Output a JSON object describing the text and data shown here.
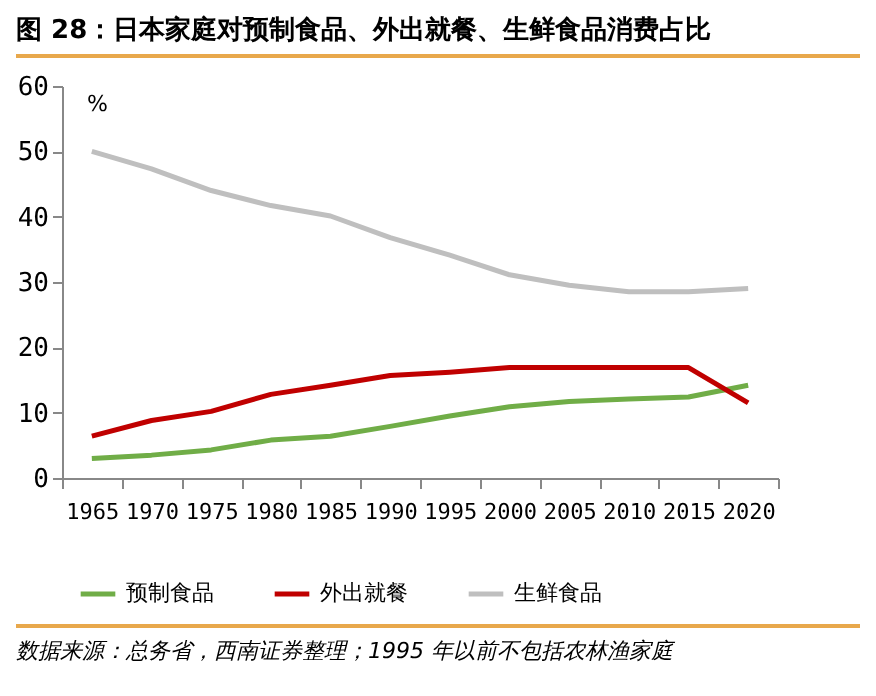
{
  "chart_data": {
    "type": "line",
    "title": "图 28：日本家庭对预制食品、外出就餐、生鲜食品消费占比",
    "ylabel": "%",
    "categories": [
      "1965",
      "1970",
      "1975",
      "1980",
      "1985",
      "1990",
      "1995",
      "2000",
      "2005",
      "2010",
      "2015",
      "2020"
    ],
    "series": [
      {
        "name": "预制食品",
        "color": "#70ad47",
        "values": [
          3.0,
          3.5,
          4.3,
          5.8,
          6.4,
          7.9,
          9.5,
          10.9,
          11.7,
          12.1,
          12.4,
          14.2
        ]
      },
      {
        "name": "外出就餐",
        "color": "#c00000",
        "values": [
          6.4,
          8.8,
          10.2,
          12.8,
          14.2,
          15.7,
          16.2,
          16.9,
          16.9,
          16.9,
          16.9,
          11.5
        ]
      },
      {
        "name": "生鲜食品",
        "color": "#bfbfbf",
        "values": [
          50.0,
          47.3,
          44.0,
          41.7,
          40.1,
          36.8,
          34.1,
          31.1,
          29.5,
          28.5,
          28.5,
          29.0
        ]
      }
    ],
    "ylim": [
      0,
      60
    ],
    "yticks": [
      0,
      10,
      20,
      30,
      40,
      50,
      60
    ],
    "grid": false,
    "legend": "bottom",
    "marker": "none",
    "line_style": "solid",
    "annotations": [
      "数据来源：总务省，西南证券整理；1995 年以前不包括农林渔家庭"
    ]
  }
}
